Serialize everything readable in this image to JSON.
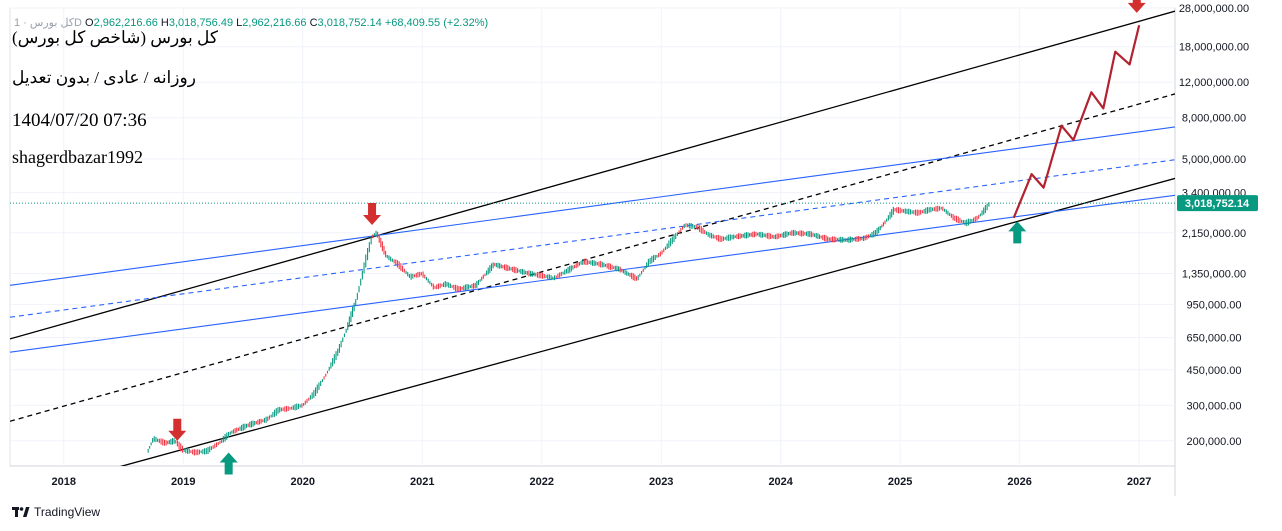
{
  "header": {
    "symbol_short": "کل بورس · 1D",
    "open_label": "O",
    "open": "2,962,216.66",
    "high_label": "H",
    "high": "3,018,756.49",
    "low_label": "L",
    "low": "2,962,216.66",
    "close_label": "C",
    "close": "3,018,752.14",
    "change": "+68,409.55 (+2.32%)"
  },
  "annotations": {
    "title": "کل بورس (شاخص کل بورس)",
    "subtitle": "روزانه / عادی / بدون تعدیل",
    "datetime": "1404/07/20 07:36",
    "author": "shagerdbazar1992"
  },
  "footer": {
    "brand": "TradingView"
  },
  "colors": {
    "candle_up": "#089981",
    "candle_down": "#f23645",
    "trend_black": "#000000",
    "trend_blue": "#2962ff",
    "forecast": "#b2222f",
    "arrow_down": "#d32f2f",
    "arrow_up": "#089981",
    "price_tag": "#089981",
    "grid": "#f0f3fa"
  },
  "chart_data": {
    "type": "line",
    "scale": "log",
    "x_ticks": [
      "2018",
      "2019",
      "2020",
      "2021",
      "2022",
      "2023",
      "2024",
      "2025",
      "2026",
      "2027"
    ],
    "y_ticks": [
      {
        "value": 200000,
        "label": "200,000.00"
      },
      {
        "value": 300000,
        "label": "300,000.00"
      },
      {
        "value": 450000,
        "label": "450,000.00"
      },
      {
        "value": 650000,
        "label": "650,000.00"
      },
      {
        "value": 950000,
        "label": "950,000.00"
      },
      {
        "value": 1350000,
        "label": "1,350,000.00"
      },
      {
        "value": 2150000,
        "label": "2,150,000.00"
      },
      {
        "value": 3400000,
        "label": "3,400,000.00"
      },
      {
        "value": 5000000,
        "label": "5,000,000.00"
      },
      {
        "value": 8000000,
        "label": "8,000,000.00"
      },
      {
        "value": 12000000,
        "label": "12,000,000.00"
      },
      {
        "value": 18000000,
        "label": "18,000,000.00"
      },
      {
        "value": 28000000,
        "label": "28,000,000.00"
      }
    ],
    "ylim": [
      150000,
      28000000
    ],
    "xlim": [
      2017.55,
      2027.3
    ],
    "last_price": {
      "value": 3018752.14,
      "label": "3,018,752.14"
    },
    "price_series": [
      [
        2018.7,
        175000
      ],
      [
        2018.75,
        205000
      ],
      [
        2018.85,
        195000
      ],
      [
        2018.93,
        200000
      ],
      [
        2019.0,
        180000
      ],
      [
        2019.1,
        175000
      ],
      [
        2019.2,
        178000
      ],
      [
        2019.3,
        195000
      ],
      [
        2019.4,
        220000
      ],
      [
        2019.55,
        240000
      ],
      [
        2019.7,
        255000
      ],
      [
        2019.8,
        285000
      ],
      [
        2019.9,
        290000
      ],
      [
        2020.0,
        300000
      ],
      [
        2020.1,
        345000
      ],
      [
        2020.2,
        430000
      ],
      [
        2020.3,
        560000
      ],
      [
        2020.37,
        720000
      ],
      [
        2020.45,
        1000000
      ],
      [
        2020.52,
        1500000
      ],
      [
        2020.58,
        2050000
      ],
      [
        2020.62,
        2150000
      ],
      [
        2020.7,
        1650000
      ],
      [
        2020.8,
        1500000
      ],
      [
        2020.9,
        1300000
      ],
      [
        2021.0,
        1350000
      ],
      [
        2021.1,
        1150000
      ],
      [
        2021.2,
        1200000
      ],
      [
        2021.3,
        1130000
      ],
      [
        2021.45,
        1180000
      ],
      [
        2021.6,
        1500000
      ],
      [
        2021.75,
        1420000
      ],
      [
        2021.9,
        1350000
      ],
      [
        2022.0,
        1320000
      ],
      [
        2022.1,
        1280000
      ],
      [
        2022.2,
        1380000
      ],
      [
        2022.35,
        1550000
      ],
      [
        2022.5,
        1500000
      ],
      [
        2022.65,
        1420000
      ],
      [
        2022.8,
        1270000
      ],
      [
        2022.9,
        1550000
      ],
      [
        2023.0,
        1700000
      ],
      [
        2023.1,
        2000000
      ],
      [
        2023.2,
        2350000
      ],
      [
        2023.3,
        2300000
      ],
      [
        2023.4,
        2100000
      ],
      [
        2023.5,
        2000000
      ],
      [
        2023.6,
        2050000
      ],
      [
        2023.8,
        2120000
      ],
      [
        2023.95,
        2050000
      ],
      [
        2024.1,
        2150000
      ],
      [
        2024.25,
        2120000
      ],
      [
        2024.4,
        2000000
      ],
      [
        2024.55,
        1980000
      ],
      [
        2024.7,
        2020000
      ],
      [
        2024.8,
        2150000
      ],
      [
        2024.88,
        2450000
      ],
      [
        2024.95,
        2800000
      ],
      [
        2025.05,
        2750000
      ],
      [
        2025.15,
        2700000
      ],
      [
        2025.25,
        2800000
      ],
      [
        2025.35,
        2850000
      ],
      [
        2025.45,
        2550000
      ],
      [
        2025.55,
        2400000
      ],
      [
        2025.65,
        2550000
      ],
      [
        2025.72,
        2850000
      ],
      [
        2025.75,
        3018752
      ]
    ],
    "trendlines": [
      {
        "color": "black",
        "dash": false,
        "points": [
          [
            2017.55,
            640000
          ],
          [
            2027.3,
            27000000
          ]
        ]
      },
      {
        "color": "black",
        "dash": false,
        "points": [
          [
            2018.0,
            125000
          ],
          [
            2027.3,
            4000000
          ]
        ]
      },
      {
        "color": "black",
        "dash": true,
        "points": [
          [
            2017.55,
            250000
          ],
          [
            2027.3,
            10500000
          ]
        ]
      },
      {
        "color": "blue",
        "dash": false,
        "points": [
          [
            2017.55,
            1180000
          ],
          [
            2027.3,
            7200000
          ]
        ]
      },
      {
        "color": "blue",
        "dash": false,
        "points": [
          [
            2017.55,
            550000
          ],
          [
            2027.3,
            3300000
          ]
        ]
      },
      {
        "color": "blue",
        "dash": true,
        "points": [
          [
            2017.55,
            820000
          ],
          [
            2027.3,
            4950000
          ]
        ]
      }
    ],
    "forecast_path": [
      [
        2025.95,
        2550000
      ],
      [
        2026.1,
        4200000
      ],
      [
        2026.2,
        3600000
      ],
      [
        2026.35,
        7300000
      ],
      [
        2026.45,
        6200000
      ],
      [
        2026.6,
        10700000
      ],
      [
        2026.7,
        8900000
      ],
      [
        2026.8,
        17000000
      ],
      [
        2026.92,
        14700000
      ],
      [
        2027.0,
        23000000
      ]
    ],
    "markers": [
      {
        "direction": "down",
        "x": 2018.95,
        "y": 200000
      },
      {
        "direction": "up",
        "x": 2019.38,
        "y": 175000
      },
      {
        "direction": "down",
        "x": 2020.58,
        "y": 2350000
      },
      {
        "direction": "up",
        "x": 2025.98,
        "y": 2450000
      },
      {
        "direction": "down",
        "x": 2026.98,
        "y": 26500000
      }
    ]
  }
}
